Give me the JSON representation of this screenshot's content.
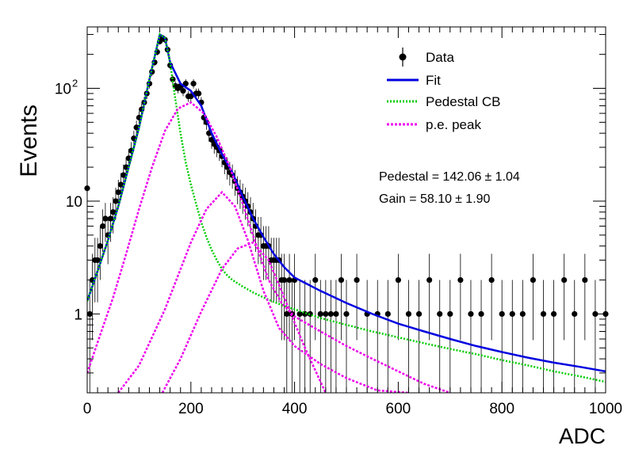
{
  "chart_data": {
    "type": "scatter",
    "title": "",
    "xlabel": "ADC",
    "ylabel": "Events",
    "xlim": [
      0,
      1000
    ],
    "ylim": [
      0.2,
      350
    ],
    "yscale": "log",
    "grid": false,
    "legend_position": "top-right",
    "x_tick_labels": [
      "0",
      "200",
      "400",
      "600",
      "800",
      "1000"
    ],
    "y_tick_labels": [
      {
        "value": 1,
        "label": "1"
      },
      {
        "value": 10,
        "label": "10"
      },
      {
        "value": 100,
        "label": "10",
        "exponent": "2"
      }
    ],
    "annotations": [
      {
        "text": "Pedestal = 142.06",
        "pm": "± 1.04"
      },
      {
        "text": "Gain = 58.10",
        "pm": "± 1.90"
      }
    ],
    "series": [
      {
        "name": "Data",
        "kind": "points_with_errors",
        "color": "#000000",
        "x": [
          0,
          5,
          10,
          15,
          20,
          25,
          30,
          35,
          40,
          45,
          50,
          55,
          60,
          65,
          70,
          75,
          80,
          85,
          90,
          95,
          100,
          105,
          110,
          115,
          120,
          125,
          130,
          135,
          140,
          145,
          150,
          155,
          160,
          165,
          170,
          175,
          180,
          185,
          190,
          195,
          200,
          205,
          210,
          215,
          220,
          225,
          230,
          235,
          240,
          245,
          250,
          255,
          260,
          265,
          270,
          275,
          280,
          285,
          290,
          295,
          300,
          305,
          310,
          315,
          320,
          325,
          330,
          335,
          340,
          345,
          350,
          355,
          360,
          365,
          370,
          375,
          380,
          385,
          390,
          395,
          400,
          410,
          420,
          430,
          440,
          450,
          460,
          470,
          480,
          490,
          500,
          520,
          540,
          560,
          580,
          600,
          620,
          640,
          660,
          680,
          700,
          720,
          740,
          760,
          780,
          800,
          820,
          840,
          860,
          880,
          900,
          920,
          940,
          960,
          980,
          1000
        ],
        "y": [
          13,
          1,
          2,
          3,
          3,
          4,
          6,
          7,
          5,
          7,
          8,
          10,
          12,
          14,
          17,
          20,
          24,
          28,
          36,
          45,
          55,
          65,
          75,
          90,
          110,
          140,
          170,
          210,
          260,
          280,
          270,
          220,
          160,
          120,
          105,
          100,
          105,
          95,
          110,
          85,
          85,
          110,
          90,
          90,
          75,
          55,
          50,
          40,
          35,
          32,
          30,
          28,
          25,
          22,
          20,
          18,
          17,
          15,
          13,
          12,
          11,
          10,
          9,
          8,
          7,
          6,
          5,
          5,
          4,
          4,
          4,
          3,
          3,
          3,
          3,
          2,
          2,
          1,
          2,
          1,
          2,
          1,
          1,
          1,
          2,
          1,
          1,
          1,
          1,
          2,
          1,
          2,
          1,
          1,
          1,
          2,
          1,
          1,
          2,
          1,
          1,
          2,
          1,
          1,
          2,
          1,
          1,
          1,
          2,
          1,
          1,
          2,
          1,
          2,
          1,
          1
        ]
      },
      {
        "name": "Fit",
        "kind": "line",
        "color": "#0000e0",
        "x": [
          0,
          20,
          40,
          60,
          80,
          100,
          120,
          140,
          150,
          160,
          180,
          200,
          220,
          240,
          260,
          280,
          300,
          320,
          340,
          360,
          380,
          400,
          450,
          500,
          550,
          600,
          650,
          700,
          750,
          800,
          850,
          900,
          950,
          1000
        ],
        "y": [
          1.3,
          2.4,
          4.5,
          9,
          20,
          45,
          120,
          300,
          280,
          170,
          110,
          95,
          70,
          40,
          26,
          18,
          11,
          7,
          4.8,
          3.4,
          2.6,
          2.1,
          1.6,
          1.25,
          1.0,
          0.82,
          0.7,
          0.6,
          0.52,
          0.46,
          0.41,
          0.37,
          0.34,
          0.31
        ]
      },
      {
        "name": "Pedestal CB",
        "kind": "line",
        "color": "#00cc00",
        "x": [
          0,
          20,
          40,
          60,
          80,
          100,
          120,
          140,
          150,
          160,
          170,
          180,
          190,
          200,
          210,
          220,
          230,
          240,
          250,
          260,
          270,
          280,
          300,
          320,
          340,
          360,
          380,
          400,
          450,
          500,
          550,
          600,
          650,
          700,
          750,
          800,
          850,
          900,
          950,
          1000
        ],
        "y": [
          1.3,
          2.4,
          4.5,
          9,
          20,
          45,
          120,
          300,
          280,
          170,
          80,
          40,
          22,
          14,
          9.5,
          6.5,
          4.8,
          3.7,
          3.0,
          2.5,
          2.2,
          2.0,
          1.75,
          1.55,
          1.4,
          1.28,
          1.18,
          1.1,
          0.92,
          0.8,
          0.7,
          0.62,
          0.55,
          0.49,
          0.44,
          0.39,
          0.35,
          0.31,
          0.28,
          0.25
        ]
      },
      {
        "name": "p.e. peak",
        "kind": "line",
        "color": "#ee00ee",
        "x": [
          0,
          25,
          50,
          75,
          100,
          125,
          150,
          175,
          200,
          225,
          250,
          275,
          300,
          325,
          350,
          375,
          400,
          450,
          500,
          550,
          600,
          650,
          700
        ],
        "y": [
          0.3,
          0.65,
          1.4,
          3.4,
          8.5,
          20,
          42,
          66,
          75,
          60,
          37,
          20,
          9.5,
          4.2,
          2.0,
          1.25,
          0.95,
          0.7,
          0.52,
          0.4,
          0.31,
          0.24,
          0.2
        ]
      },
      {
        "name": "",
        "kind": "line",
        "color": "#ee00ee",
        "x": [
          60,
          100,
          150,
          200,
          230,
          260,
          285,
          310,
          340,
          370,
          400,
          450,
          500,
          560,
          620
        ],
        "y": [
          0.2,
          0.35,
          1.1,
          4.3,
          8.5,
          12,
          9,
          4.5,
          1.6,
          0.75,
          0.52,
          0.36,
          0.27,
          0.21,
          0.2
        ]
      },
      {
        "name": "",
        "kind": "line",
        "color": "#ee00ee",
        "x": [
          145,
          180,
          220,
          260,
          290,
          320,
          350,
          380,
          420,
          460
        ],
        "y": [
          0.2,
          0.4,
          1.05,
          2.5,
          3.8,
          4.3,
          3.0,
          1.4,
          0.5,
          0.2
        ]
      }
    ],
    "legend": [
      {
        "label": "Data",
        "style": "marker",
        "color": "#000000"
      },
      {
        "label": "Fit",
        "style": "solid",
        "color": "#0000e0"
      },
      {
        "label": "Pedestal CB",
        "style": "dotted",
        "color": "#00cc00"
      },
      {
        "label": "p.e. peak",
        "style": "dotted",
        "color": "#ee00ee"
      }
    ]
  }
}
